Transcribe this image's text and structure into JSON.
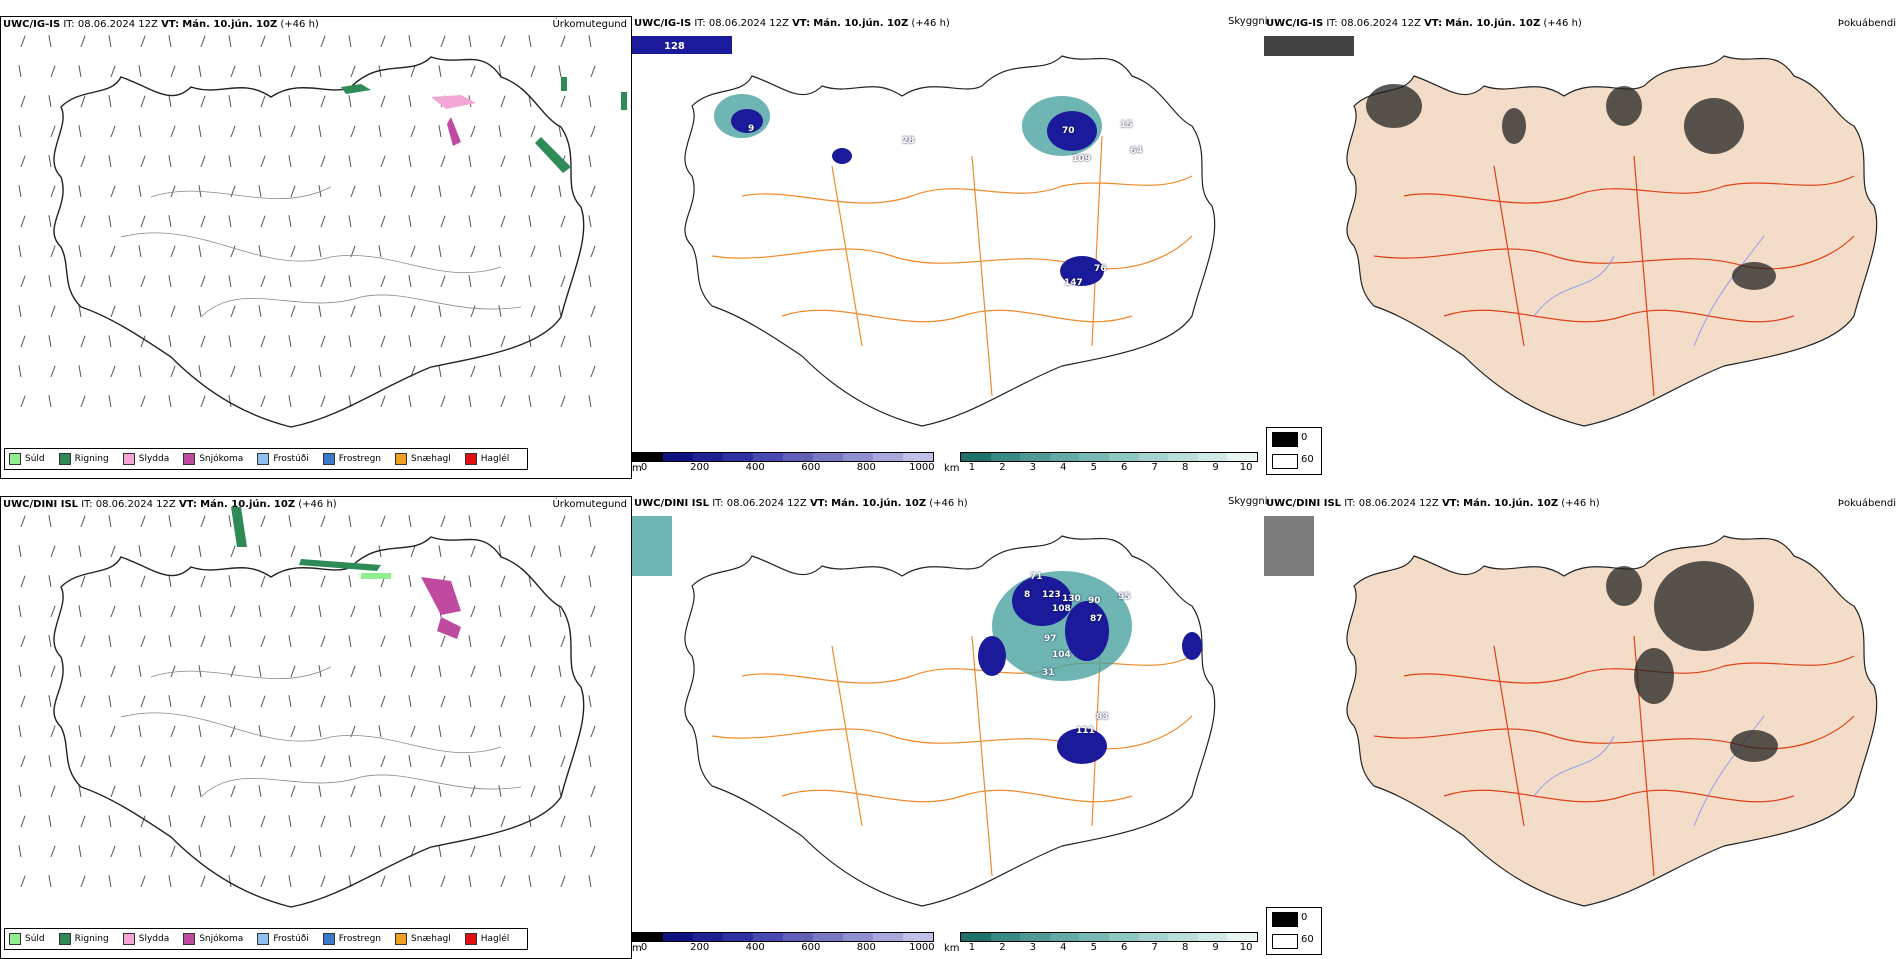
{
  "colors": {
    "orange_roads": "#f08a2a",
    "red_roads": "#e0401a",
    "land_fill": "#f4ddc8",
    "blue_rivers": "#8899ee",
    "precip_blue_dark": "#1a1a9a",
    "precip_teal": "#4aa3a0"
  },
  "rows": [
    {
      "precip": {
        "model": "UWC/IG-IS",
        "it": "IT: 08.06.2024 12Z",
        "vt_label": "VT:",
        "vt": "Mán. 10.jún. 10Z",
        "lead": "(+46 h)",
        "right_label": "Úrkomutegund"
      },
      "ceiling": {
        "skyggni": "Skyggni",
        "labels": [
          "128",
          "76",
          "147",
          "70",
          "109",
          "15",
          "64",
          "28",
          "9"
        ]
      },
      "fog": {
        "model": "UWC/IG-IS",
        "it": "IT: 08.06.2024 12Z",
        "vt_label": "VT:",
        "vt": "Mán. 10.jún. 10Z",
        "lead": "(+46 h)",
        "right_label": "Þokuábendi"
      }
    },
    {
      "precip": {
        "model": "UWC/DINI ISL",
        "it": "IT: 08.06.2024 12Z",
        "vt_label": "VT:",
        "vt": "Mán. 10.jún. 10Z",
        "lead": "(+46 h)",
        "right_label": "Úrkomutegund"
      },
      "ceiling": {
        "skyggni": "Skyggni",
        "labels": [
          "71",
          "123",
          "130",
          "90",
          "95",
          "87",
          "97",
          "104",
          "31",
          "83",
          "111",
          "8",
          "108"
        ]
      },
      "fog": {
        "model": "UWC/DINI ISL",
        "it": "IT: 08.06.2024 12Z",
        "vt_label": "VT:",
        "vt": "Mán. 10.jún. 10Z",
        "lead": "(+46 h)",
        "right_label": "Þokuábendi"
      }
    }
  ],
  "legend_precip": [
    {
      "label": "Súld",
      "color": "#90ee90"
    },
    {
      "label": "Rigning",
      "color": "#2e8b57"
    },
    {
      "label": "Slydda",
      "color": "#f4a6d7"
    },
    {
      "label": "Snjókoma",
      "color": "#c04aa0"
    },
    {
      "label": "Frostúði",
      "color": "#8cc0f0"
    },
    {
      "label": "Frostregn",
      "color": "#3a78c8"
    },
    {
      "label": "Snæhagl",
      "color": "#f0a020"
    },
    {
      "label": "Haglél",
      "color": "#e01010"
    }
  ],
  "colorbar_ceiling": {
    "unit": "m",
    "ticks": [
      "0",
      "200",
      "400",
      "600",
      "800",
      "1000"
    ],
    "colors": [
      "#000000",
      "#101080",
      "#202090",
      "#3030a0",
      "#4848b0",
      "#6060b8",
      "#7878c4",
      "#9090d0",
      "#a8a8dc",
      "#c0c0e8"
    ]
  },
  "colorbar_visibility": {
    "unit": "km",
    "ticks": [
      "1",
      "2",
      "3",
      "4",
      "5",
      "6",
      "7",
      "8",
      "9",
      "10"
    ],
    "colors": [
      "#1f6f6a",
      "#3a8a84",
      "#4e9a94",
      "#62aaa4",
      "#78b8b2",
      "#8ec6c0",
      "#a4d2cc",
      "#badfda",
      "#d0ebe7",
      "#e8f5f3"
    ]
  },
  "fog_legend": {
    "high": "0",
    "low": "60"
  }
}
